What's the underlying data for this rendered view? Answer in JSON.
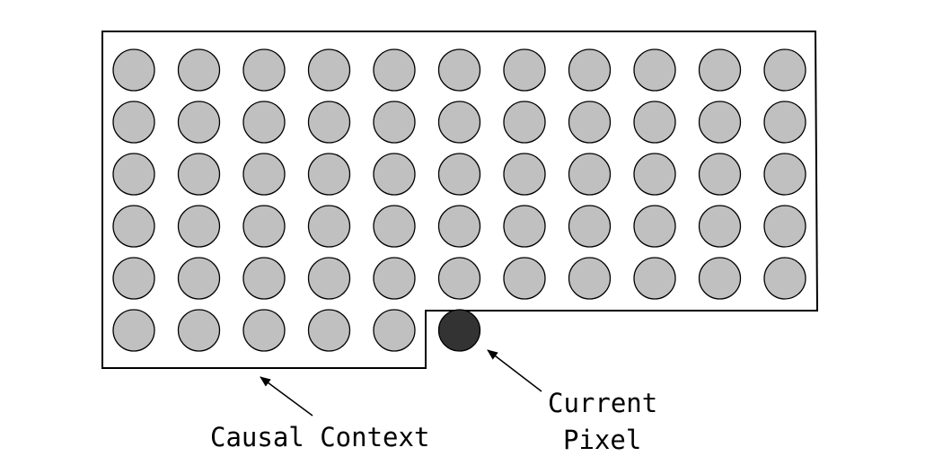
{
  "grid": {
    "rows": 6,
    "cols": 11,
    "causal_count_last_row": 5,
    "current_row": 5,
    "current_col": 5
  },
  "colors": {
    "causal_pixel_fill": "#c0c0c0",
    "current_pixel_fill": "#333333",
    "stroke": "#000000",
    "background": "#ffffff"
  },
  "labels": {
    "causal_context": "Causal Context",
    "current_pixel_line1": "Current",
    "current_pixel_line2": "Pixel"
  }
}
